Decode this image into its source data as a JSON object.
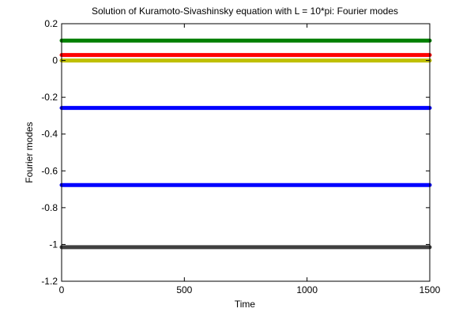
{
  "chart_data": {
    "type": "line",
    "title": "Solution of Kuramoto-Sivashinsky equation with L = 10*pi: Fourier modes",
    "xlabel": "Time",
    "ylabel": "Fourier modes",
    "xlim": [
      0,
      1500
    ],
    "ylim": [
      -1.2,
      0.2
    ],
    "xticks": [
      0,
      500,
      1000,
      1500
    ],
    "xtick_labels": [
      "0",
      "500",
      "1000",
      "1500"
    ],
    "yticks": [
      0.2,
      0,
      -0.2,
      -0.4,
      -0.6,
      -0.8,
      -1,
      -1.2
    ],
    "ytick_labels": [
      "0.2",
      "0",
      "-0.2",
      "-0.4",
      "-0.6",
      "-0.8",
      "-1",
      "-1.2"
    ],
    "grid": false,
    "x": [
      0,
      1500
    ],
    "series": [
      {
        "values": [
          0.108,
          0.108
        ],
        "color": "#008000"
      },
      {
        "values": [
          0.03,
          0.03
        ],
        "color": "#ff0000"
      },
      {
        "values": [
          0.0,
          0.0
        ],
        "color": "#bfbf00"
      },
      {
        "values": [
          -0.258,
          -0.258
        ],
        "color": "#0000ff"
      },
      {
        "values": [
          -0.677,
          -0.677
        ],
        "color": "#0000ff"
      },
      {
        "values": [
          -1.015,
          -1.015
        ],
        "color": "#404040"
      }
    ]
  }
}
